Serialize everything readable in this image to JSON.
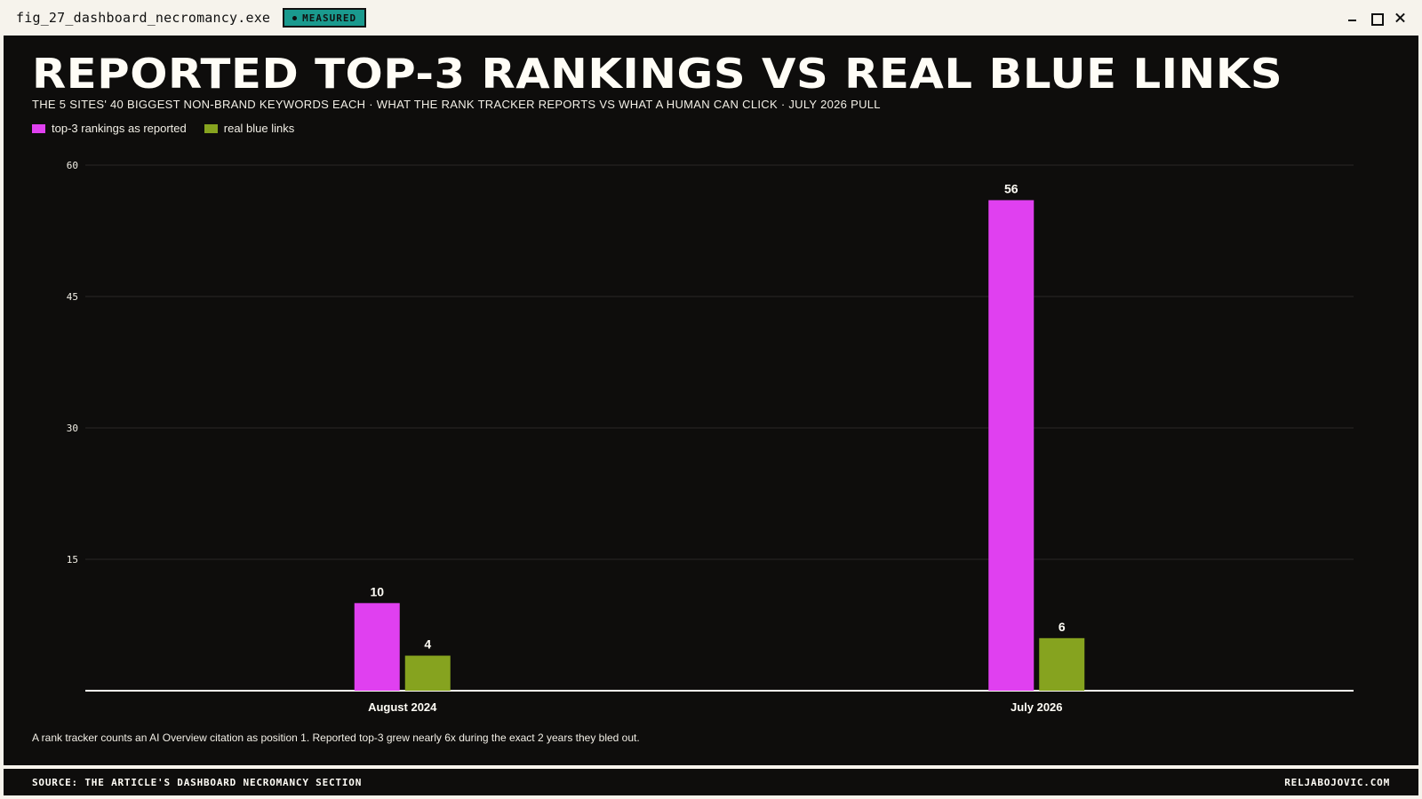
{
  "window": {
    "title": "fig_27_dashboard_necromancy.exe",
    "badge": "MEASURED"
  },
  "chart_data": {
    "type": "bar",
    "title": "REPORTED TOP-3 RANKINGS VS REAL BLUE LINKS",
    "subtitle": "THE 5 SITES' 40 BIGGEST NON-BRAND KEYWORDS EACH · WHAT THE RANK TRACKER REPORTS VS WHAT A HUMAN CAN CLICK · JULY 2026 PULL",
    "categories": [
      "August 2024",
      "July 2026"
    ],
    "series": [
      {
        "name": "top-3 rankings as reported",
        "values": [
          10,
          56
        ],
        "color": "#e040f0"
      },
      {
        "name": "real blue links",
        "values": [
          4,
          6
        ],
        "color": "#86a31f"
      }
    ],
    "ylim": [
      0,
      60
    ],
    "yticks": [
      15,
      30,
      45,
      60
    ],
    "grid": true,
    "legend_position": "top-left",
    "footnote": "A rank tracker counts an AI Overview citation as position 1. Reported top-3 grew nearly 6x during the exact 2 years they bled out."
  },
  "footer": {
    "source": "SOURCE: THE ARTICLE'S DASHBOARD NECROMANCY SECTION",
    "site": "RELJABOJOVIC.COM"
  }
}
